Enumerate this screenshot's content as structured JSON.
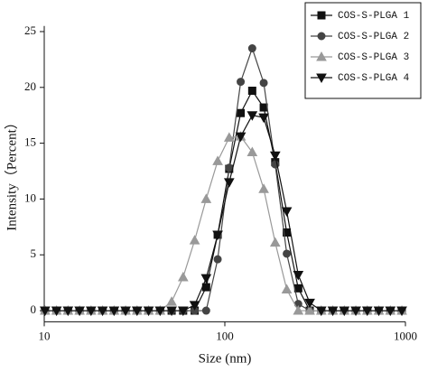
{
  "chart_data": {
    "type": "line",
    "xlabel": "Size (nm)",
    "ylabel": "Intensity（Percent）",
    "x": [
      10.1,
      11.7,
      13.54,
      15.69,
      18.17,
      21.04,
      24.36,
      28.21,
      32.67,
      37.84,
      43.82,
      50.75,
      58.77,
      68.06,
      78.82,
      91.28,
      105.7,
      122.4,
      141.8,
      164.2,
      190.1,
      220.2,
      255.0,
      295.3,
      342.0,
      396.1,
      458.7,
      531.2,
      615.1,
      712.4,
      825.0,
      955.4
    ],
    "series": [
      {
        "name": "COS-S-PLGA 1",
        "color": "#111111",
        "marker": "square",
        "values": [
          0,
          0,
          0,
          0,
          0,
          0,
          0,
          0,
          0,
          0,
          0,
          0,
          0,
          0,
          2.1,
          6.8,
          12.7,
          17.7,
          19.7,
          18.2,
          13.3,
          7.0,
          2.0,
          0,
          0,
          0,
          0,
          0,
          0,
          0,
          0,
          0
        ]
      },
      {
        "name": "COS-S-PLGA 2",
        "color": "#444444",
        "marker": "circle",
        "values": [
          0,
          0,
          0,
          0,
          0,
          0,
          0,
          0,
          0,
          0,
          0,
          0,
          0,
          0,
          0,
          4.6,
          12.8,
          20.5,
          23.5,
          20.4,
          13.1,
          5.1,
          0.6,
          0,
          0,
          0,
          0,
          0,
          0,
          0,
          0,
          0
        ]
      },
      {
        "name": "COS-S-PLGA 3",
        "color": "#999999",
        "marker": "triangle",
        "values": [
          0,
          0,
          0,
          0,
          0,
          0,
          0,
          0,
          0,
          0,
          0,
          0.8,
          3.0,
          6.3,
          10.0,
          13.4,
          15.5,
          15.6,
          14.2,
          10.9,
          6.1,
          1.9,
          0,
          0,
          0,
          0,
          0,
          0,
          0,
          0,
          0,
          0
        ]
      },
      {
        "name": "COS-S-PLGA 4",
        "color": "#111111",
        "marker": "triangle-down",
        "values": [
          0,
          0,
          0,
          0,
          0,
          0,
          0,
          0,
          0,
          0,
          0,
          0,
          0,
          0.5,
          2.9,
          6.8,
          11.5,
          15.6,
          17.5,
          17.3,
          13.9,
          8.9,
          3.2,
          0.7,
          0,
          0,
          0,
          0,
          0,
          0,
          0,
          0
        ]
      }
    ],
    "xscale": "log",
    "xlim": [
      10,
      1000
    ],
    "xticks": [
      10,
      100,
      1000
    ],
    "ylim": [
      -1,
      25.5
    ],
    "yticks": [
      0,
      5,
      10,
      15,
      20,
      25
    ],
    "grid": false,
    "legend": "upper right"
  }
}
